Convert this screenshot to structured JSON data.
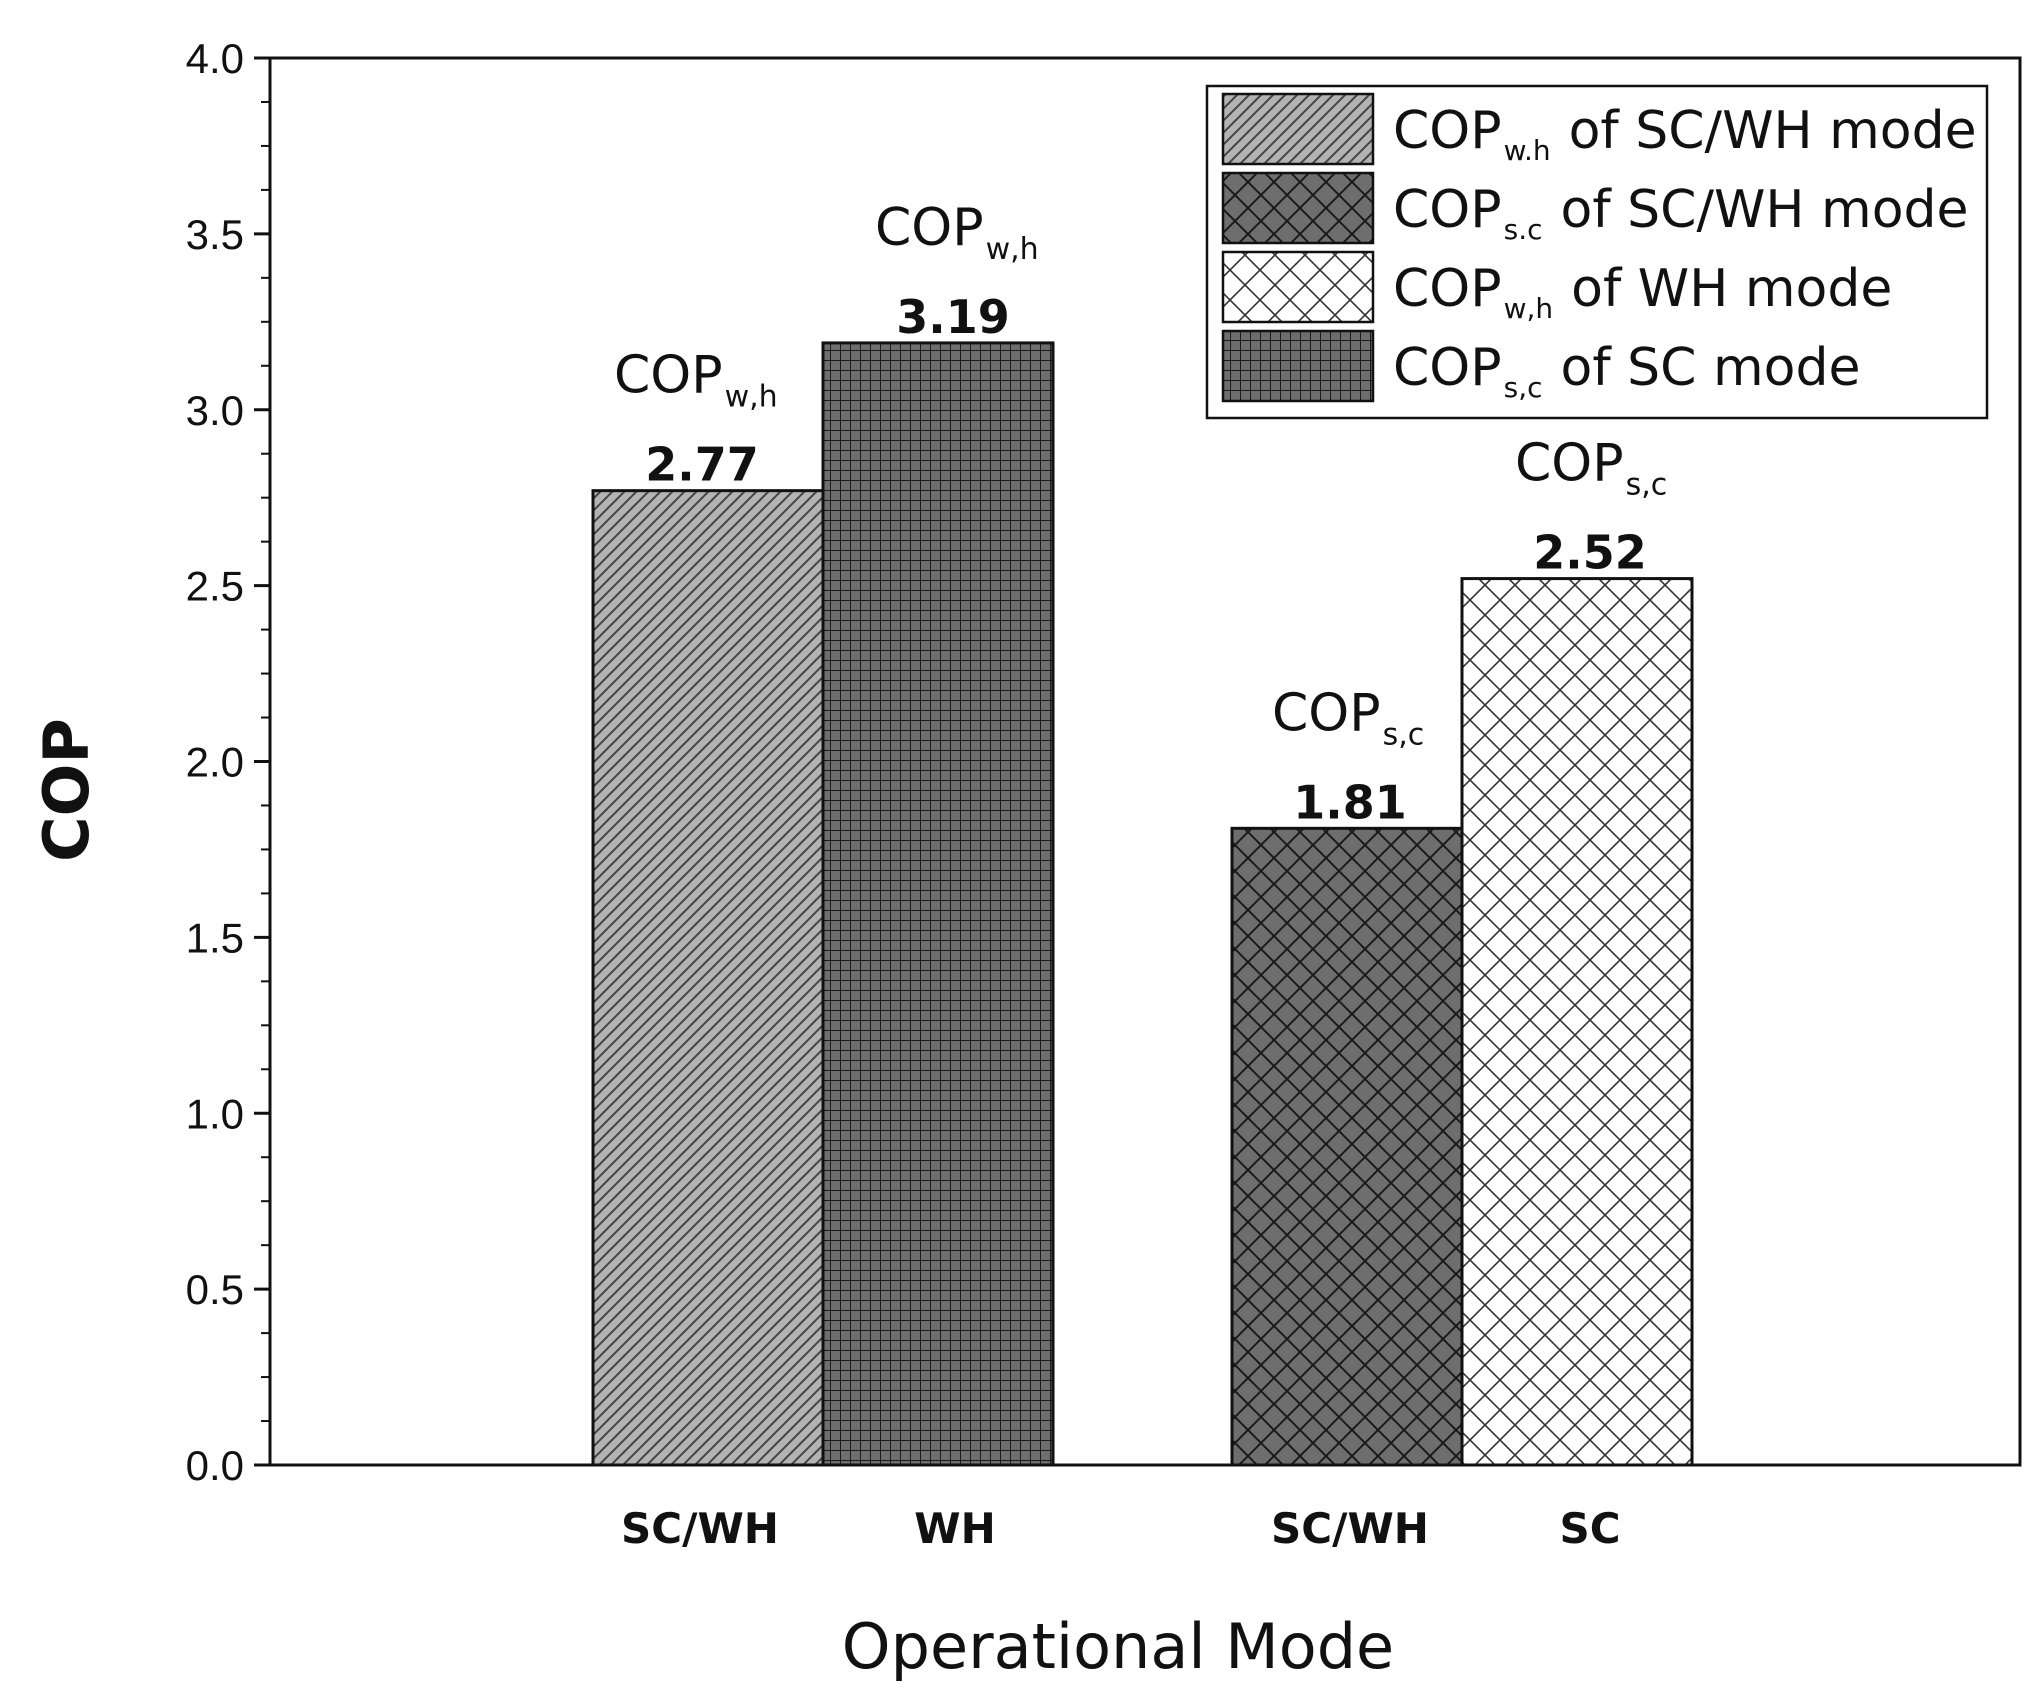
{
  "chart_data": {
    "type": "bar",
    "title": "",
    "xlabel": "Operational Mode",
    "ylabel": "COP",
    "ylim": [
      0,
      4.0
    ],
    "yticks": [
      "0.0",
      "0.5",
      "1.0",
      "1.5",
      "2.0",
      "2.5",
      "3.0",
      "3.5",
      "4.0"
    ],
    "categories": [
      "SC/WH",
      "WH",
      "SC/WH",
      "SC"
    ],
    "values": [
      2.77,
      3.19,
      1.81,
      2.52
    ],
    "value_labels": [
      "2.77",
      "3.19",
      "1.81",
      "2.52"
    ],
    "annotations": [
      {
        "main": "COP",
        "sub": "w,h"
      },
      {
        "main": "COP",
        "sub": "w,h"
      },
      {
        "main": "COP",
        "sub": "s,c"
      },
      {
        "main": "COP",
        "sub": "s,c"
      }
    ],
    "legend": [
      {
        "main": "COP",
        "sub": "w.h",
        "rest": "of  SC/WH mode",
        "pattern": "diagonal",
        "color": "#b3b3b3"
      },
      {
        "main": "COP",
        "sub": "s.c",
        "rest": "of  SC/WH mode",
        "pattern": "crosshatch-dark",
        "color": "#6e6e6e"
      },
      {
        "main": "COP",
        "sub": "w,h",
        "rest": "of  WH mode",
        "pattern": "crosshatch-light",
        "color": "#ffffff"
      },
      {
        "main": "COP",
        "sub": "s,c",
        "rest": "of  SC mode",
        "pattern": "grid",
        "color": "#6e6e6e"
      }
    ],
    "legend_position": "top-right",
    "grid": false
  }
}
